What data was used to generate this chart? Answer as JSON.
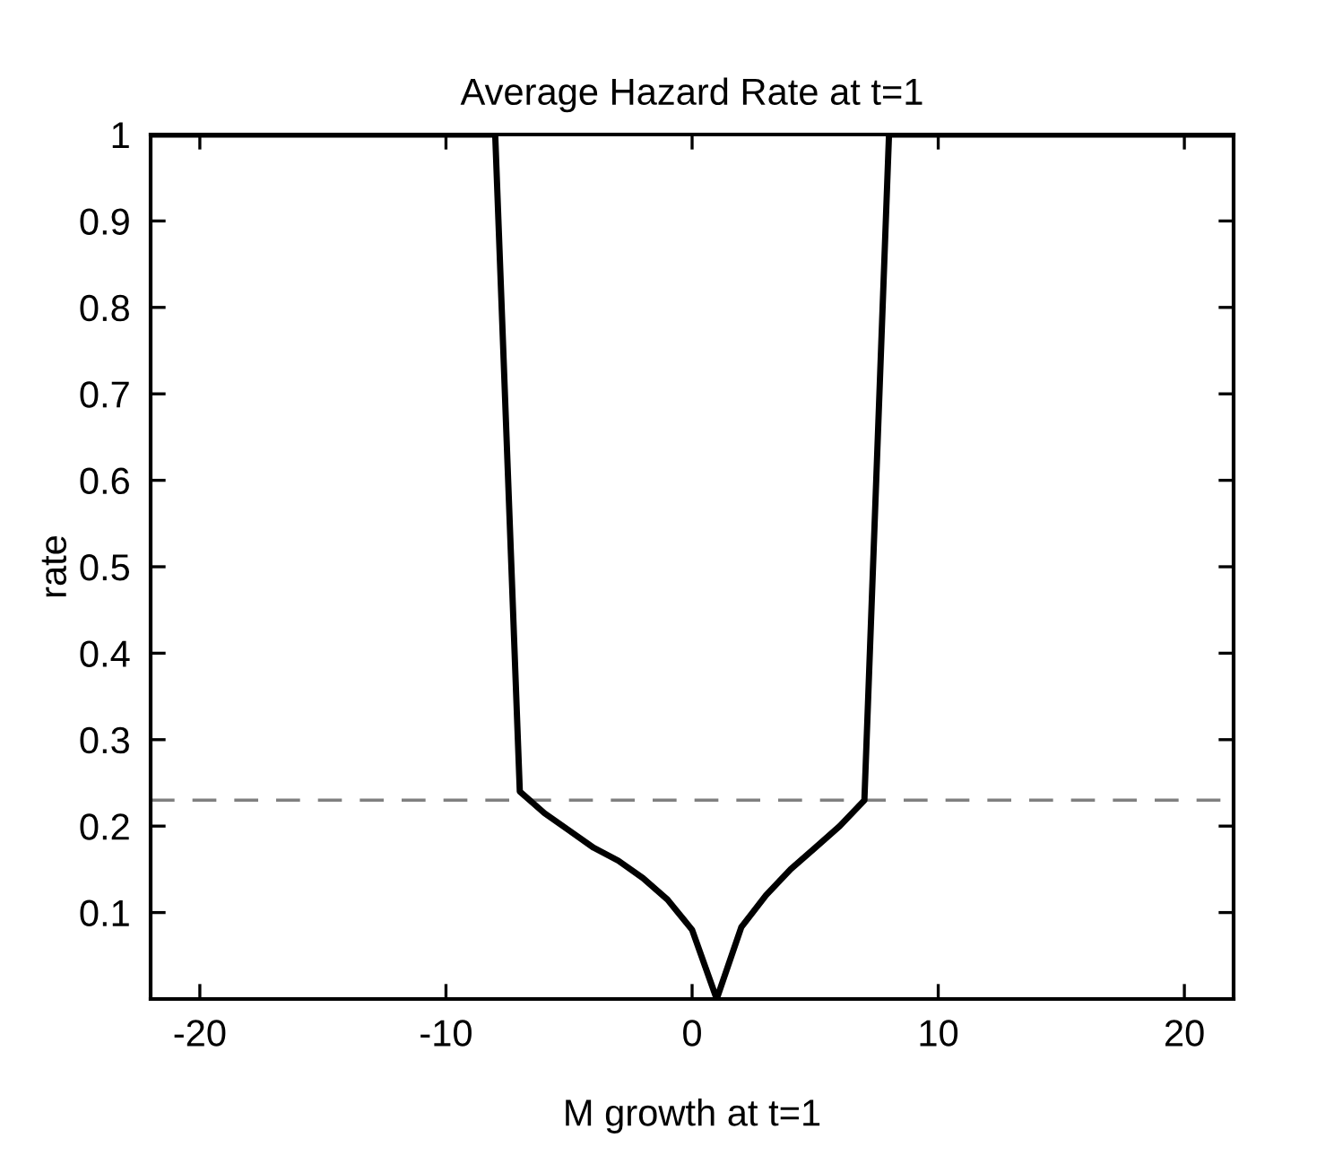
{
  "chart_data": {
    "type": "line",
    "title": "Average Hazard Rate at t=1",
    "xlabel": "M growth at t=1",
    "ylabel": "rate",
    "x": [
      -22,
      -8,
      -7,
      -6,
      -5,
      -4,
      -3,
      -2,
      -1,
      0,
      1,
      2,
      3,
      4,
      5,
      6,
      7,
      8,
      22
    ],
    "series": [
      {
        "color": "#000000",
        "values": [
          1,
          1,
          0.24,
          0.215,
          0.195,
          0.175,
          0.16,
          0.14,
          0.115,
          0.08,
          0,
          0.083,
          0.12,
          0.15,
          0.175,
          0.2,
          0.23,
          1,
          1
        ]
      }
    ],
    "xlim": [
      -22,
      22
    ],
    "ylim": [
      0,
      1
    ],
    "xticks": [
      -20,
      -10,
      0,
      10,
      20
    ],
    "yticks": [
      0.1,
      0.2,
      0.3,
      0.4,
      0.5,
      0.6,
      0.7,
      0.8,
      0.9,
      1
    ],
    "ref_lines": [
      {
        "axis": "y",
        "value": 0.23,
        "color": "#808080",
        "line_style": "dashed"
      }
    ],
    "grid": false,
    "line_style": "solid"
  }
}
